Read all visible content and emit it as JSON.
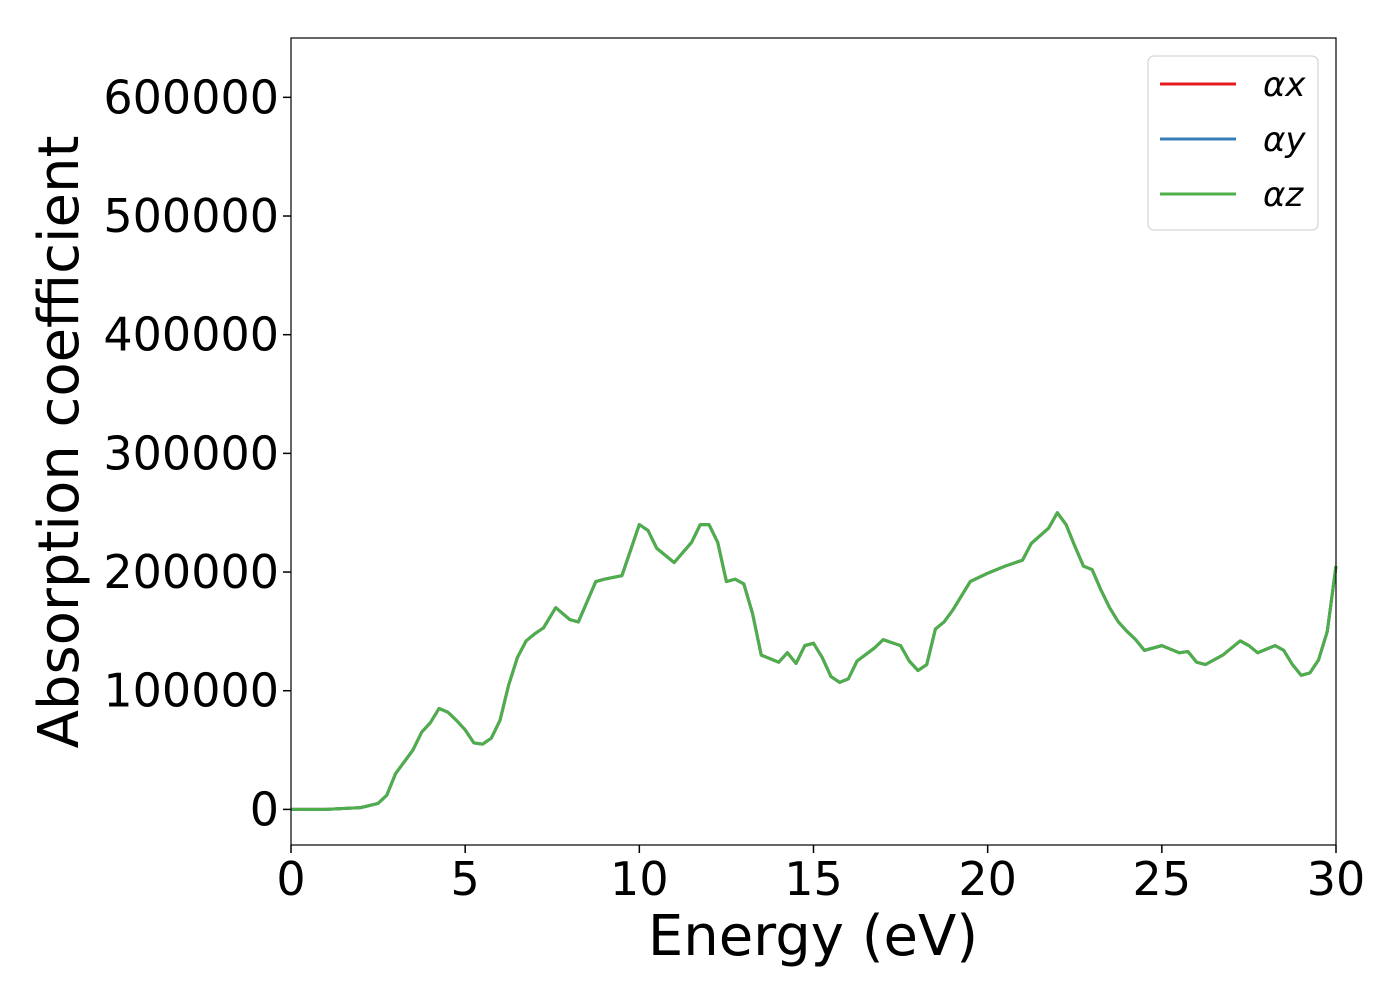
{
  "chart_data": {
    "type": "line",
    "xlabel": "Energy (eV)",
    "ylabel": "Absorption coefficient",
    "x": [
      0,
      1,
      2,
      2.5,
      2.75,
      3,
      3.5,
      3.75,
      4,
      4.25,
      4.5,
      4.75,
      5,
      5.25,
      5.5,
      5.75,
      6,
      6.25,
      6.5,
      6.75,
      7,
      7.25,
      7.6,
      8,
      8.25,
      8.5,
      8.75,
      9,
      9.5,
      10,
      10.25,
      10.5,
      11,
      11.5,
      11.75,
      12,
      12.25,
      12.5,
      12.75,
      13,
      13.25,
      13.5,
      14,
      14.25,
      14.5,
      14.75,
      15,
      15.25,
      15.5,
      15.75,
      16,
      16.25,
      16.75,
      17,
      17.5,
      17.75,
      18,
      18.25,
      18.5,
      18.75,
      19,
      19.5,
      20,
      20.5,
      21,
      21.25,
      21.75,
      22,
      22.25,
      22.5,
      22.75,
      23,
      23.25,
      23.5,
      23.75,
      24,
      24.25,
      24.5,
      25,
      25.5,
      25.75,
      26,
      26.25,
      26.75,
      27.25,
      27.5,
      27.75,
      28,
      28.25,
      28.5,
      28.75,
      29,
      29.25,
      29.5,
      29.75,
      30
    ],
    "series": [
      {
        "name": "αx",
        "color": "#e41a1c",
        "values": [
          0,
          0,
          1500,
          5000,
          12000,
          30000,
          50000,
          65000,
          73000,
          85000,
          82000,
          75000,
          67000,
          56000,
          55000,
          60000,
          75000,
          105000,
          128000,
          142000,
          148000,
          153000,
          170000,
          160000,
          158000,
          175000,
          192000,
          194000,
          197000,
          240000,
          235000,
          220000,
          208000,
          225000,
          240000,
          240000,
          225000,
          192000,
          194000,
          190000,
          165000,
          130000,
          124000,
          132000,
          123000,
          138000,
          140000,
          128000,
          112000,
          107000,
          110000,
          125000,
          136000,
          143000,
          138000,
          125000,
          117000,
          122000,
          152000,
          158000,
          168000,
          192000,
          199000,
          205000,
          210000,
          224000,
          237000,
          250000,
          240000,
          222000,
          205000,
          202000,
          185000,
          170000,
          158000,
          150000,
          143000,
          134000,
          138000,
          132000,
          133000,
          124000,
          122000,
          130000,
          142000,
          138000,
          132000,
          135000,
          138000,
          134000,
          122000,
          113000,
          115000,
          126000,
          150000,
          205000
        ]
      },
      {
        "name": "αy",
        "color": "#377eb8",
        "values": [
          0,
          0,
          1500,
          5000,
          12000,
          30000,
          50000,
          65000,
          73000,
          85000,
          82000,
          75000,
          67000,
          56000,
          55000,
          60000,
          75000,
          105000,
          128000,
          142000,
          148000,
          153000,
          170000,
          160000,
          158000,
          175000,
          192000,
          194000,
          197000,
          240000,
          235000,
          220000,
          208000,
          225000,
          240000,
          240000,
          225000,
          192000,
          194000,
          190000,
          165000,
          130000,
          124000,
          132000,
          123000,
          138000,
          140000,
          128000,
          112000,
          107000,
          110000,
          125000,
          136000,
          143000,
          138000,
          125000,
          117000,
          122000,
          152000,
          158000,
          168000,
          192000,
          199000,
          205000,
          210000,
          224000,
          237000,
          250000,
          240000,
          222000,
          205000,
          202000,
          185000,
          170000,
          158000,
          150000,
          143000,
          134000,
          138000,
          132000,
          133000,
          124000,
          122000,
          130000,
          142000,
          138000,
          132000,
          135000,
          138000,
          134000,
          122000,
          113000,
          115000,
          126000,
          150000,
          205000
        ]
      },
      {
        "name": "αz",
        "color": "#4daf4a",
        "values": [
          0,
          0,
          1500,
          5000,
          12000,
          30000,
          50000,
          65000,
          73000,
          85000,
          82000,
          75000,
          67000,
          56000,
          55000,
          60000,
          75000,
          105000,
          128000,
          142000,
          148000,
          153000,
          170000,
          160000,
          158000,
          175000,
          192000,
          194000,
          197000,
          240000,
          235000,
          220000,
          208000,
          225000,
          240000,
          240000,
          225000,
          192000,
          194000,
          190000,
          165000,
          130000,
          124000,
          132000,
          123000,
          138000,
          140000,
          128000,
          112000,
          107000,
          110000,
          125000,
          136000,
          143000,
          138000,
          125000,
          117000,
          122000,
          152000,
          158000,
          168000,
          192000,
          199000,
          205000,
          210000,
          224000,
          237000,
          250000,
          240000,
          222000,
          205000,
          202000,
          185000,
          170000,
          158000,
          150000,
          143000,
          134000,
          138000,
          132000,
          133000,
          124000,
          122000,
          130000,
          142000,
          138000,
          132000,
          135000,
          138000,
          134000,
          122000,
          113000,
          115000,
          126000,
          150000,
          205000
        ]
      }
    ],
    "xlim": [
      0,
      30
    ],
    "xticks": [
      0,
      5,
      10,
      15,
      20,
      25,
      30
    ],
    "ylim": [
      -30000,
      650000
    ],
    "yticks": [
      0,
      100000,
      200000,
      300000,
      400000,
      500000,
      600000
    ],
    "legend": "upper right"
  }
}
